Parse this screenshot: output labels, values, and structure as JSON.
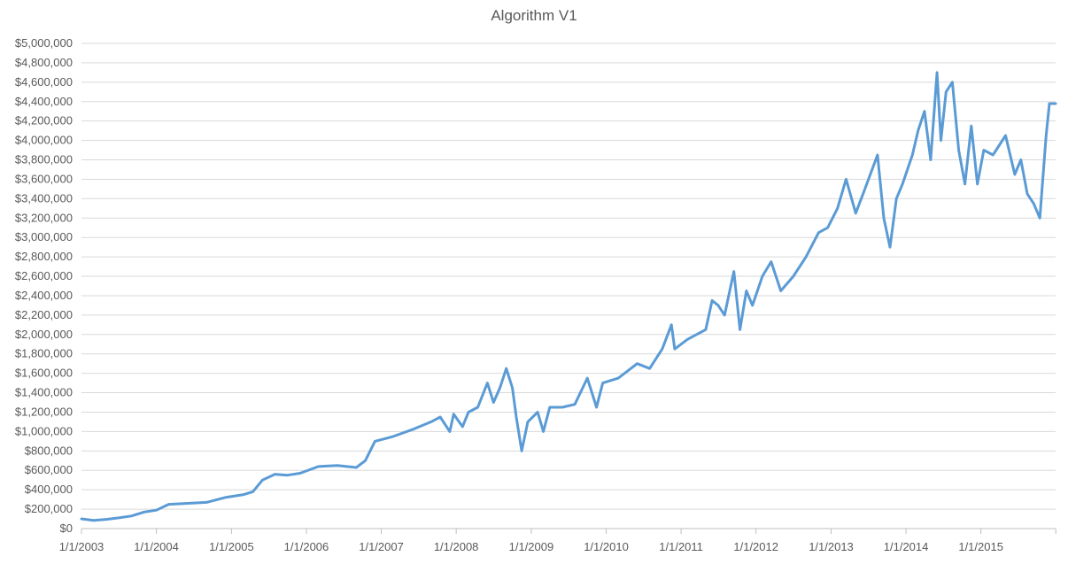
{
  "chart_data": {
    "type": "line",
    "title": "Algorithm V1",
    "xlabel": "",
    "ylabel": "",
    "x_tick_labels": [
      "1/1/2003",
      "1/1/2004",
      "1/1/2005",
      "1/1/2006",
      "1/1/2007",
      "1/1/2008",
      "1/1/2009",
      "1/1/2010",
      "1/1/2011",
      "1/1/2012",
      "1/1/2013",
      "1/1/2014",
      "1/1/2015"
    ],
    "y_tick_labels": [
      "$0",
      "$200,000",
      "$400,000",
      "$600,000",
      "$800,000",
      "$1,000,000",
      "$1,200,000",
      "$1,400,000",
      "$1,600,000",
      "$1,800,000",
      "$2,000,000",
      "$2,200,000",
      "$2,400,000",
      "$2,600,000",
      "$2,800,000",
      "$3,000,000",
      "$3,200,000",
      "$3,400,000",
      "$3,600,000",
      "$3,800,000",
      "$4,000,000",
      "$4,200,000",
      "$4,400,000",
      "$4,600,000",
      "$4,800,000",
      "$5,000,000"
    ],
    "xlim": [
      "2003-01-01",
      "2015-12-31"
    ],
    "ylim": [
      0,
      5000000
    ],
    "grid": true,
    "legend": "none",
    "series": [
      {
        "color": "#5b9bd5",
        "points": [
          [
            "2003-01-01",
            100000
          ],
          [
            "2003-03-01",
            85000
          ],
          [
            "2003-05-01",
            95000
          ],
          [
            "2003-07-01",
            110000
          ],
          [
            "2003-09-01",
            130000
          ],
          [
            "2003-11-01",
            170000
          ],
          [
            "2004-01-01",
            190000
          ],
          [
            "2004-03-01",
            250000
          ],
          [
            "2004-06-01",
            260000
          ],
          [
            "2004-09-01",
            270000
          ],
          [
            "2004-12-01",
            320000
          ],
          [
            "2005-03-01",
            350000
          ],
          [
            "2005-04-15",
            380000
          ],
          [
            "2005-06-01",
            500000
          ],
          [
            "2005-08-01",
            560000
          ],
          [
            "2005-10-01",
            550000
          ],
          [
            "2005-12-01",
            570000
          ],
          [
            "2006-03-01",
            640000
          ],
          [
            "2006-06-01",
            650000
          ],
          [
            "2006-09-01",
            630000
          ],
          [
            "2006-10-15",
            700000
          ],
          [
            "2006-12-01",
            900000
          ],
          [
            "2007-03-01",
            950000
          ],
          [
            "2007-06-01",
            1020000
          ],
          [
            "2007-09-01",
            1100000
          ],
          [
            "2007-10-15",
            1150000
          ],
          [
            "2007-12-01",
            1000000
          ],
          [
            "2007-12-20",
            1180000
          ],
          [
            "2008-02-01",
            1050000
          ],
          [
            "2008-03-01",
            1200000
          ],
          [
            "2008-04-15",
            1250000
          ],
          [
            "2008-06-01",
            1500000
          ],
          [
            "2008-07-01",
            1300000
          ],
          [
            "2008-08-01",
            1450000
          ],
          [
            "2008-09-01",
            1650000
          ],
          [
            "2008-10-01",
            1450000
          ],
          [
            "2008-10-20",
            1150000
          ],
          [
            "2008-11-15",
            800000
          ],
          [
            "2008-12-15",
            1100000
          ],
          [
            "2009-02-01",
            1200000
          ],
          [
            "2009-03-01",
            1000000
          ],
          [
            "2009-04-01",
            1250000
          ],
          [
            "2009-06-01",
            1250000
          ],
          [
            "2009-08-01",
            1280000
          ],
          [
            "2009-10-01",
            1550000
          ],
          [
            "2009-11-15",
            1250000
          ],
          [
            "2009-12-15",
            1500000
          ],
          [
            "2010-03-01",
            1550000
          ],
          [
            "2010-06-01",
            1700000
          ],
          [
            "2010-08-01",
            1650000
          ],
          [
            "2010-10-01",
            1850000
          ],
          [
            "2010-11-15",
            2100000
          ],
          [
            "2010-12-01",
            1850000
          ],
          [
            "2011-02-01",
            1950000
          ],
          [
            "2011-05-01",
            2050000
          ],
          [
            "2011-06-01",
            2350000
          ],
          [
            "2011-07-01",
            2300000
          ],
          [
            "2011-08-01",
            2200000
          ],
          [
            "2011-09-15",
            2650000
          ],
          [
            "2011-10-15",
            2050000
          ],
          [
            "2011-11-15",
            2450000
          ],
          [
            "2011-12-15",
            2300000
          ],
          [
            "2012-02-01",
            2600000
          ],
          [
            "2012-03-15",
            2750000
          ],
          [
            "2012-05-01",
            2450000
          ],
          [
            "2012-07-01",
            2600000
          ],
          [
            "2012-09-01",
            2800000
          ],
          [
            "2012-11-01",
            3050000
          ],
          [
            "2012-12-15",
            3100000
          ],
          [
            "2013-02-01",
            3300000
          ],
          [
            "2013-03-15",
            3600000
          ],
          [
            "2013-05-01",
            3250000
          ],
          [
            "2013-06-15",
            3500000
          ],
          [
            "2013-08-15",
            3850000
          ],
          [
            "2013-09-15",
            3200000
          ],
          [
            "2013-10-15",
            2900000
          ],
          [
            "2013-11-15",
            3400000
          ],
          [
            "2013-12-15",
            3550000
          ],
          [
            "2014-02-01",
            3850000
          ],
          [
            "2014-03-01",
            4100000
          ],
          [
            "2014-04-01",
            4300000
          ],
          [
            "2014-05-01",
            3800000
          ],
          [
            "2014-06-01",
            4700000
          ],
          [
            "2014-06-20",
            4000000
          ],
          [
            "2014-07-15",
            4500000
          ],
          [
            "2014-08-15",
            4600000
          ],
          [
            "2014-09-15",
            3900000
          ],
          [
            "2014-10-15",
            3550000
          ],
          [
            "2014-11-15",
            4150000
          ],
          [
            "2014-12-15",
            3550000
          ],
          [
            "2015-01-15",
            3900000
          ],
          [
            "2015-03-01",
            3850000
          ],
          [
            "2015-05-01",
            4050000
          ],
          [
            "2015-06-15",
            3650000
          ],
          [
            "2015-07-15",
            3800000
          ],
          [
            "2015-08-15",
            3450000
          ],
          [
            "2015-09-15",
            3350000
          ],
          [
            "2015-10-15",
            3200000
          ],
          [
            "2015-11-15",
            4050000
          ],
          [
            "2015-12-01",
            4380000
          ],
          [
            "2015-12-31",
            4380000
          ]
        ]
      }
    ]
  }
}
